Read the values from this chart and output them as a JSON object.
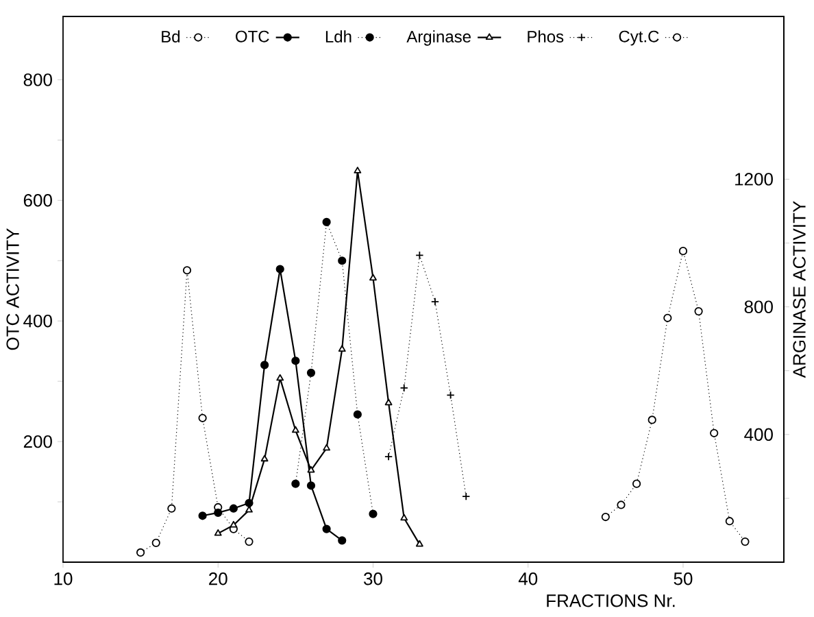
{
  "chart_data": {
    "type": "line",
    "xlabel": "FRACTIONS Nr.",
    "ylabel": "OTC ACTIVITY",
    "y2label": "ARGINASE ACTIVITY",
    "xlim": [
      10,
      56.5
    ],
    "xticks": [
      10,
      20,
      30,
      40,
      50
    ],
    "ylim": [
      0,
      905
    ],
    "yticks": [
      {
        "value": 100,
        "label": null
      },
      200,
      {
        "value": 300,
        "label": null
      },
      400,
      {
        "value": 500,
        "label": null
      },
      600,
      {
        "value": 700,
        "label": null
      },
      800
    ],
    "y2lim": [
      0,
      1710
    ],
    "y2ticks": [
      {
        "value": 200,
        "label": null
      },
      400,
      {
        "value": 600,
        "label": null
      },
      800,
      {
        "value": 1000,
        "label": null
      },
      1200
    ],
    "legend": "top",
    "grid": false,
    "series": [
      {
        "name": "Bd",
        "color": "#000000",
        "marker": "circle_open",
        "line_style": "dotted",
        "x": [
          15,
          16,
          17,
          18,
          19,
          20,
          21,
          22
        ],
        "values": [
          16,
          32,
          89,
          484,
          239,
          91,
          55,
          34
        ]
      },
      {
        "name": "OTC",
        "color": "#000000",
        "marker": "circle",
        "line_style": "solid",
        "x": [
          19,
          20,
          21,
          22,
          23,
          24,
          25,
          26,
          27,
          28
        ],
        "values": [
          77,
          82,
          89,
          98,
          327,
          486,
          334,
          127,
          55,
          36
        ]
      },
      {
        "name": "Ldh",
        "color": "#000000",
        "marker": "circle",
        "line_style": "dotted",
        "x": [
          25,
          26,
          27,
          28,
          29,
          30
        ],
        "values": [
          130,
          314,
          564,
          500,
          245,
          80
        ]
      },
      {
        "name": "Arginase",
        "color": "#000000",
        "marker": "triangle_open",
        "line_style": "solid",
        "axis": "y2",
        "x": [
          20,
          21,
          22,
          23,
          24,
          25,
          26,
          27,
          28,
          29,
          30,
          31,
          32,
          33
        ],
        "values": [
          90,
          116,
          163,
          323,
          576,
          413,
          288,
          357,
          667,
          1226,
          890,
          499,
          138,
          56
        ]
      },
      {
        "name": "Phos",
        "color": "#000000",
        "marker": "cross",
        "line_style": "dotted",
        "x": [
          31,
          32,
          33,
          34,
          35,
          36
        ],
        "values": [
          175,
          289,
          509,
          432,
          277,
          109
        ]
      },
      {
        "name": "Cyt.C",
        "color": "#000000",
        "marker": "circle_open",
        "line_style": "dotted",
        "x": [
          45,
          46,
          47,
          48,
          49,
          50,
          51,
          52,
          53,
          54
        ],
        "values": [
          75,
          95,
          130,
          236,
          405,
          516,
          416,
          214,
          68,
          34
        ]
      }
    ]
  }
}
